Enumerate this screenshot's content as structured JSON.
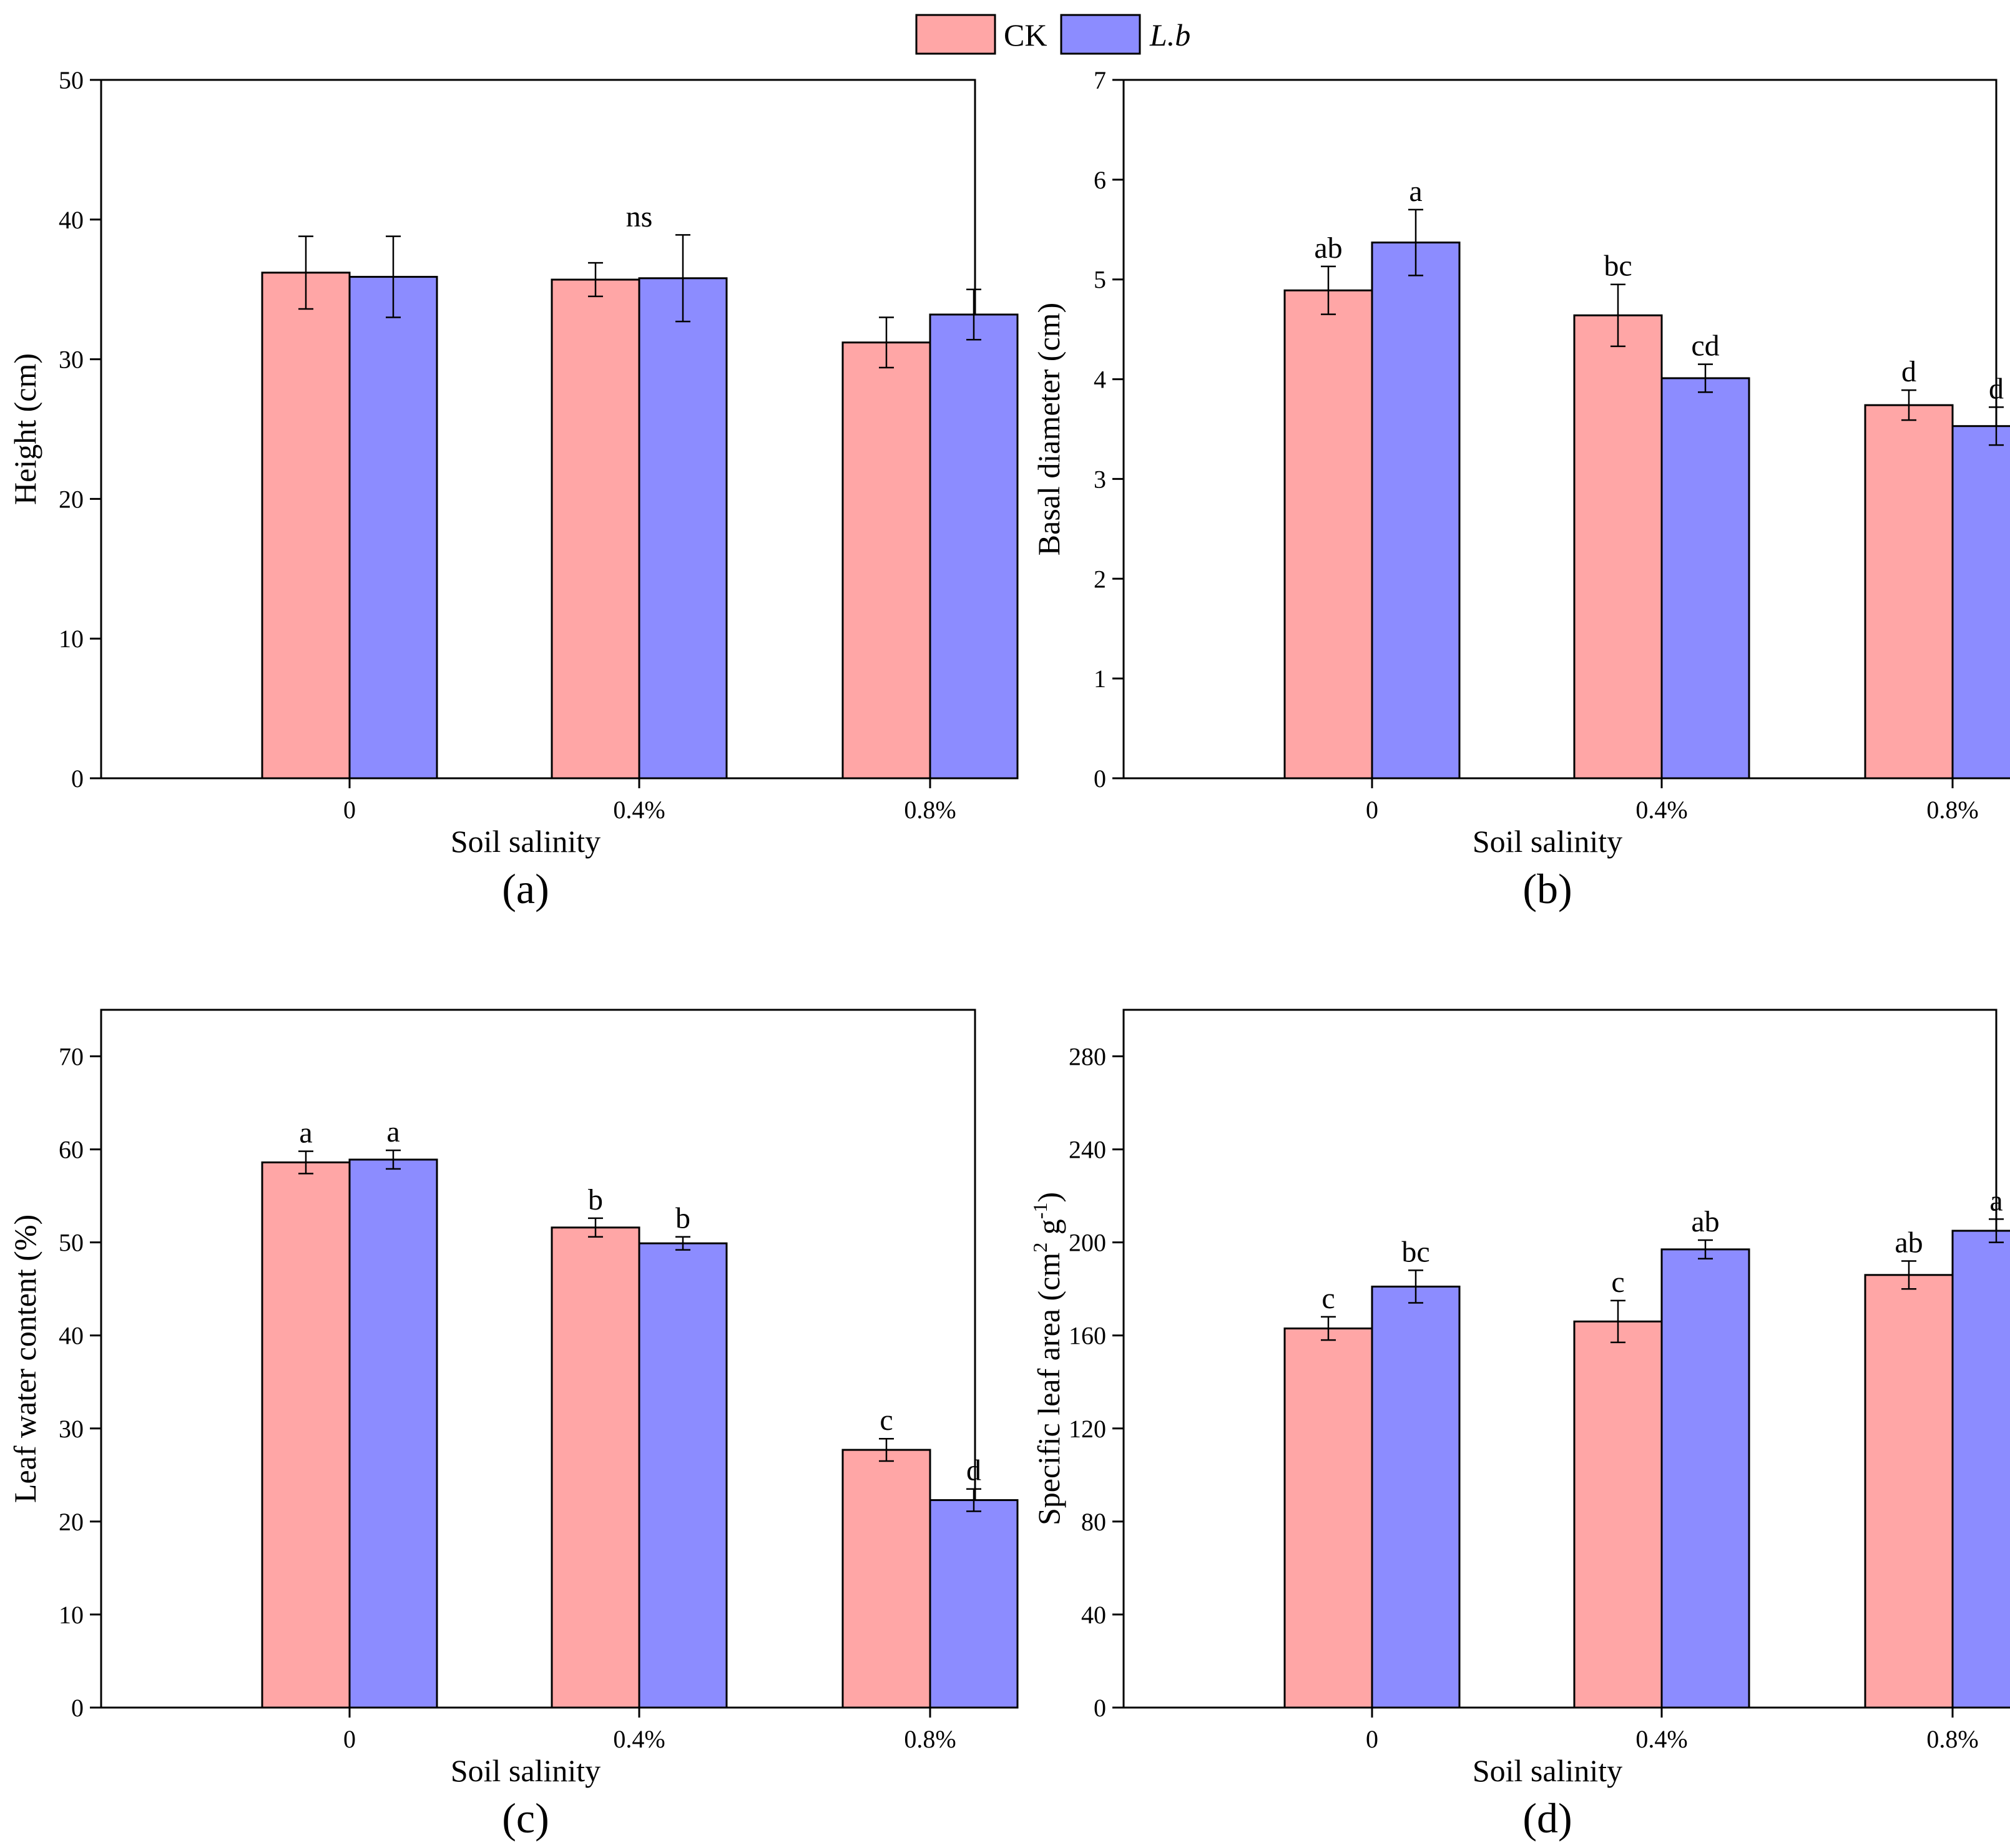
{
  "legend": {
    "entries": [
      {
        "name": "CK",
        "italic": false,
        "color": "#FFA6A6"
      },
      {
        "name": "L.b",
        "italic": true,
        "color": "#8C8CFF"
      }
    ]
  },
  "chart_data": [
    {
      "panel_label": "(a)",
      "type": "bar",
      "xlabel": "Soil salinity",
      "ylabel": "Height (cm)",
      "ylim": [
        0,
        50
      ],
      "yticks": [
        0,
        10,
        20,
        30,
        40,
        50
      ],
      "categories": [
        "0",
        "0.4%",
        "0.8%"
      ],
      "series": [
        {
          "name": "CK",
          "values": [
            36.2,
            35.7,
            31.2
          ],
          "errors": [
            2.6,
            1.2,
            1.8
          ]
        },
        {
          "name": "L.b",
          "values": [
            35.9,
            35.8,
            33.2
          ],
          "errors": [
            2.9,
            3.1,
            1.8
          ]
        }
      ],
      "annotations": [
        {
          "text": "ns",
          "category": 1,
          "at": "group",
          "y": 39.5
        }
      ]
    },
    {
      "panel_label": "(b)",
      "type": "bar",
      "xlabel": "Soil salinity",
      "ylabel": "Basal diameter (cm)",
      "ylim": [
        0,
        7
      ],
      "yticks": [
        0,
        1,
        2,
        3,
        4,
        5,
        6,
        7
      ],
      "categories": [
        "0",
        "0.4%",
        "0.8%"
      ],
      "series": [
        {
          "name": "CK",
          "values": [
            4.89,
            4.64,
            3.74
          ],
          "errors": [
            0.24,
            0.31,
            0.15
          ],
          "letters": [
            "ab",
            "bc",
            "d"
          ]
        },
        {
          "name": "L.b",
          "values": [
            5.37,
            4.01,
            3.53
          ],
          "errors": [
            0.33,
            0.14,
            0.19
          ],
          "letters": [
            "a",
            "cd",
            "d"
          ]
        }
      ]
    },
    {
      "panel_label": "(c)",
      "type": "bar",
      "xlabel": "Soil salinity",
      "ylabel": "Leaf water content (%)",
      "ylim": [
        0,
        75
      ],
      "yticks": [
        0,
        10,
        20,
        30,
        40,
        50,
        60,
        70
      ],
      "categories": [
        "0",
        "0.4%",
        "0.8%"
      ],
      "series": [
        {
          "name": "CK",
          "values": [
            58.6,
            51.6,
            27.7
          ],
          "errors": [
            1.2,
            1.0,
            1.2
          ],
          "letters": [
            "a",
            "b",
            "c"
          ]
        },
        {
          "name": "L.b",
          "values": [
            58.9,
            49.9,
            22.3
          ],
          "errors": [
            1.0,
            0.7,
            1.2
          ],
          "letters": [
            "a",
            "b",
            "d"
          ]
        }
      ]
    },
    {
      "panel_label": "(d)",
      "type": "bar",
      "xlabel": "Soil salinity",
      "ylabel": "Specific leaf area (cm2 g-1)",
      "ylabel_parts": {
        "base": "Specific leaf area (cm",
        "sup1": "2",
        "mid": " g",
        "sup2": "-1",
        "end": ")"
      },
      "ylim": [
        0,
        300
      ],
      "yticks": [
        0,
        40,
        80,
        120,
        160,
        200,
        240,
        280
      ],
      "categories": [
        "0",
        "0.4%",
        "0.8%"
      ],
      "series": [
        {
          "name": "CK",
          "values": [
            163,
            166,
            186
          ],
          "errors": [
            5,
            9,
            6
          ],
          "letters": [
            "c",
            "c",
            "ab"
          ]
        },
        {
          "name": "L.b",
          "values": [
            181,
            197,
            205
          ],
          "errors": [
            7,
            4,
            5
          ],
          "letters": [
            "bc",
            "ab",
            "a"
          ]
        }
      ]
    }
  ]
}
